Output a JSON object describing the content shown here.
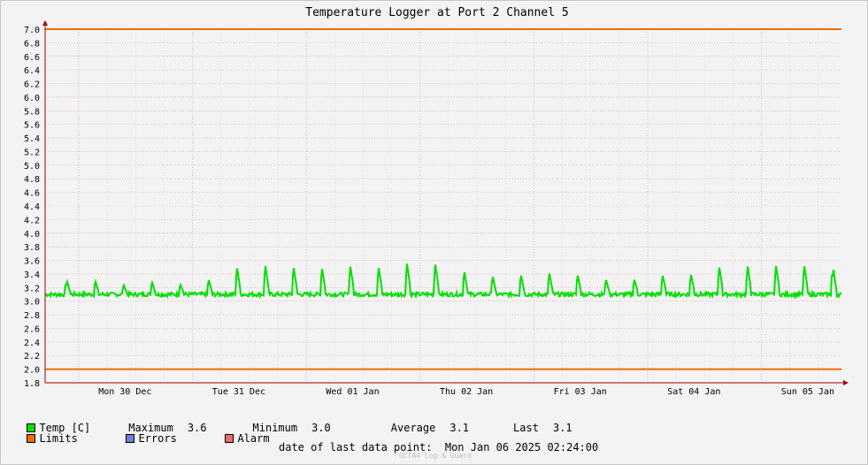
{
  "chart_data": {
    "type": "line",
    "title": "Temperature Logger at Port 2 Channel 5",
    "xlabel": "",
    "ylabel": "",
    "ylim": [
      1.8,
      7.0
    ],
    "yticks": [
      "7.0",
      "6.8",
      "6.6",
      "6.4",
      "6.2",
      "6.0",
      "5.8",
      "5.6",
      "5.4",
      "5.2",
      "5.0",
      "4.8",
      "4.6",
      "4.4",
      "4.2",
      "4.0",
      "3.8",
      "3.6",
      "3.4",
      "3.2",
      "3.0",
      "2.8",
      "2.6",
      "2.4",
      "2.2",
      "2.0",
      "1.8"
    ],
    "xticks": [
      "Mon 30 Dec",
      "Tue 31 Dec",
      "Wed 01 Jan",
      "Thu 02 Jan",
      "Fri 03 Jan",
      "Sat 04 Jan",
      "Sun 05 Jan"
    ],
    "grid": true,
    "limits": {
      "upper": 7.0,
      "lower": 2.0
    },
    "series": [
      {
        "name": "Temp [C]",
        "color": "#00e000",
        "baseline": 3.1,
        "peaks": [
          3.33,
          3.33,
          3.26,
          3.3,
          3.26,
          3.34,
          3.53,
          3.56,
          3.52,
          3.5,
          3.53,
          3.5,
          3.56,
          3.54,
          3.5,
          3.41,
          3.43,
          3.46,
          3.42,
          3.34,
          3.34,
          3.4,
          3.41,
          3.52,
          3.53,
          3.53,
          3.52,
          3.55
        ]
      }
    ]
  },
  "legend": {
    "temp_label": "Temp [C]",
    "max_label": "Maximum",
    "max_value": "3.6",
    "min_label": "Minimum",
    "min_value": "3.0",
    "avg_label": "Average",
    "avg_value": "3.1",
    "last_label": "Last",
    "last_value": "3.1",
    "limits_label": "Limits",
    "errors_label": "Errors",
    "alarm_label": "Alarm"
  },
  "colors": {
    "temp": "#00e000",
    "limits": "#ea6d00",
    "errors": "#6b7fe0",
    "alarm": "#f06a6a"
  },
  "footer": {
    "date_label": "date of last data point:",
    "date_value": "Mon Jan 06 2025 02:24:00",
    "credit": "OCTA4 Log & Guard"
  }
}
